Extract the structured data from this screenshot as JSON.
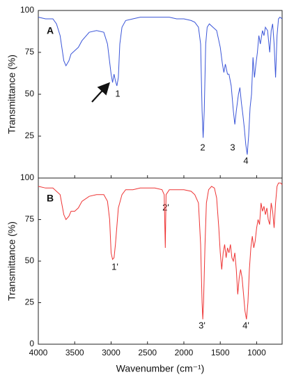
{
  "chart_data": [
    {
      "type": "line",
      "panel_label": "A",
      "color": "#3a55d8",
      "ylabel": "Transmittance (%)",
      "xlim": [
        4000,
        650
      ],
      "ylim": [
        0,
        100
      ],
      "yticks": [
        25,
        50,
        75,
        100
      ],
      "annotations": [
        "1",
        "2",
        "3",
        "4"
      ],
      "x": [
        4000,
        3900,
        3800,
        3750,
        3700,
        3650,
        3620,
        3580,
        3550,
        3500,
        3450,
        3400,
        3300,
        3200,
        3100,
        3050,
        3000,
        2980,
        2960,
        2940,
        2920,
        2900,
        2880,
        2850,
        2800,
        2700,
        2600,
        2500,
        2400,
        2300,
        2200,
        2100,
        2000,
        1900,
        1850,
        1800,
        1770,
        1750,
        1735,
        1720,
        1700,
        1680,
        1650,
        1600,
        1550,
        1500,
        1470,
        1450,
        1430,
        1400,
        1380,
        1350,
        1320,
        1300,
        1280,
        1250,
        1230,
        1210,
        1190,
        1170,
        1150,
        1130,
        1110,
        1090,
        1070,
        1050,
        1030,
        1010,
        990,
        970,
        950,
        920,
        900,
        880,
        850,
        820,
        800,
        780,
        760,
        740,
        720,
        700,
        680,
        650
      ],
      "values": [
        96,
        95,
        95,
        92,
        85,
        70,
        67,
        70,
        74,
        76,
        78,
        82,
        87,
        88,
        87,
        80,
        62,
        57,
        62,
        58,
        55,
        60,
        80,
        90,
        94,
        95,
        96,
        96,
        96,
        96,
        96,
        95,
        95,
        94,
        93,
        90,
        80,
        40,
        24,
        40,
        80,
        90,
        92,
        90,
        88,
        78,
        68,
        63,
        68,
        62,
        62,
        55,
        40,
        32,
        40,
        50,
        54,
        45,
        38,
        30,
        20,
        14,
        25,
        42,
        50,
        72,
        60,
        68,
        75,
        85,
        80,
        88,
        85,
        90,
        88,
        75,
        88,
        92,
        80,
        60,
        85,
        95,
        96,
        95
      ]
    },
    {
      "type": "line",
      "panel_label": "B",
      "color": "#ee3333",
      "ylabel": "Transmittance (%)",
      "xlabel": "Wavenumber (cm⁻¹)",
      "xlim": [
        4000,
        650
      ],
      "xticks": [
        4000,
        3500,
        3000,
        2500,
        2000,
        1500,
        1000
      ],
      "ylim": [
        0,
        100
      ],
      "yticks": [
        0,
        25,
        50,
        75,
        100
      ],
      "annotations": [
        "1'",
        "2'",
        "3'",
        "4'"
      ],
      "x": [
        4000,
        3900,
        3800,
        3700,
        3650,
        3620,
        3580,
        3550,
        3500,
        3450,
        3400,
        3300,
        3200,
        3100,
        3050,
        3020,
        3000,
        2980,
        2960,
        2940,
        2900,
        2850,
        2800,
        2700,
        2600,
        2500,
        2400,
        2300,
        2270,
        2255,
        2245,
        2200,
        2100,
        2000,
        1900,
        1850,
        1800,
        1770,
        1750,
        1740,
        1730,
        1710,
        1690,
        1660,
        1620,
        1580,
        1550,
        1520,
        1500,
        1480,
        1460,
        1440,
        1420,
        1400,
        1380,
        1360,
        1340,
        1320,
        1300,
        1280,
        1260,
        1240,
        1220,
        1200,
        1180,
        1160,
        1140,
        1120,
        1100,
        1080,
        1060,
        1040,
        1020,
        1000,
        980,
        960,
        940,
        920,
        900,
        880,
        860,
        840,
        820,
        800,
        780,
        760,
        740,
        720,
        700,
        670,
        650
      ],
      "values": [
        95,
        94,
        94,
        90,
        78,
        75,
        77,
        80,
        80,
        82,
        86,
        89,
        90,
        90,
        86,
        75,
        55,
        51,
        52,
        60,
        82,
        90,
        93,
        93,
        94,
        94,
        94,
        93,
        90,
        58,
        90,
        93,
        93,
        93,
        92,
        90,
        85,
        60,
        25,
        15,
        25,
        60,
        85,
        93,
        95,
        94,
        88,
        70,
        55,
        45,
        55,
        60,
        52,
        58,
        55,
        60,
        52,
        50,
        55,
        45,
        30,
        40,
        45,
        40,
        30,
        20,
        15,
        25,
        45,
        58,
        65,
        58,
        62,
        70,
        75,
        72,
        85,
        80,
        83,
        78,
        82,
        75,
        72,
        85,
        80,
        70,
        85,
        95,
        97,
        97,
        96
      ]
    }
  ]
}
